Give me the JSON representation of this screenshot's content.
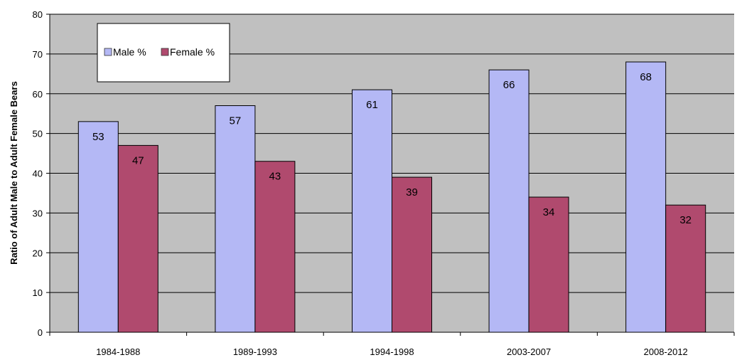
{
  "chart_data": {
    "type": "bar",
    "categories": [
      "1984-1988",
      "1989-1993",
      "1994-1998",
      "2003-2007",
      "2008-2012"
    ],
    "series": [
      {
        "name": "Male %",
        "values": [
          53,
          57,
          61,
          66,
          68
        ],
        "color": "#b4b8f5"
      },
      {
        "name": "Female %",
        "values": [
          47,
          43,
          39,
          34,
          32
        ],
        "color": "#b04a6e"
      }
    ],
    "title": "",
    "xlabel": "",
    "ylabel": "Ratio of Adult Male to Adult Female Bears",
    "ylim": [
      0,
      80
    ],
    "yticks": [
      0,
      10,
      20,
      30,
      40,
      50,
      60,
      70,
      80
    ],
    "grid": true,
    "legend_position": "top-left",
    "plot_background": "#c0c0c0"
  }
}
